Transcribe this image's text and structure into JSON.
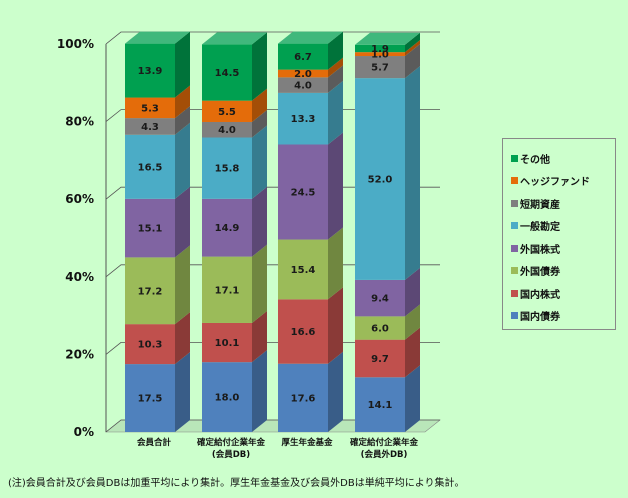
{
  "chart_data": {
    "type": "bar",
    "stacked": true,
    "percent": true,
    "categories": [
      [
        "会員合計"
      ],
      [
        "確定給付企業年金",
        "(会員DB)"
      ],
      [
        "厚生年金基金"
      ],
      [
        "確定給付企業年金",
        "(会員外DB)"
      ]
    ],
    "series": [
      {
        "name": "国内債券",
        "color": "#4f81bd",
        "values": [
          17.5,
          18.0,
          17.6,
          14.1
        ]
      },
      {
        "name": "国内株式",
        "color": "#c0504d",
        "values": [
          10.3,
          10.1,
          16.6,
          9.7
        ]
      },
      {
        "name": "外国債券",
        "color": "#9bbb59",
        "values": [
          17.2,
          17.1,
          15.4,
          6.0
        ]
      },
      {
        "name": "外国株式",
        "color": "#8064a2",
        "values": [
          15.1,
          14.9,
          24.5,
          9.4
        ]
      },
      {
        "name": "一般勘定",
        "color": "#4bacc6",
        "values": [
          16.5,
          15.8,
          13.3,
          52.0
        ]
      },
      {
        "name": "短期資産",
        "color": "#7f7f7f",
        "values": [
          4.3,
          4.0,
          4.0,
          5.7
        ]
      },
      {
        "name": "ヘッジファンド",
        "color": "#e46c0a",
        "values": [
          5.3,
          5.5,
          2.0,
          1.0
        ]
      },
      {
        "name": "その他",
        "color": "#00a050",
        "values": [
          13.9,
          14.5,
          6.7,
          1.9
        ]
      }
    ],
    "yticks": [
      "0%",
      "20%",
      "40%",
      "60%",
      "80%",
      "100%"
    ],
    "ylim": [
      0,
      100
    ],
    "grid": true,
    "legend_position": "right"
  },
  "note": "(注)会員合計及び会員DBは加重平均により集計。厚生年金基金及び会員外DBは単純平均により集計。"
}
